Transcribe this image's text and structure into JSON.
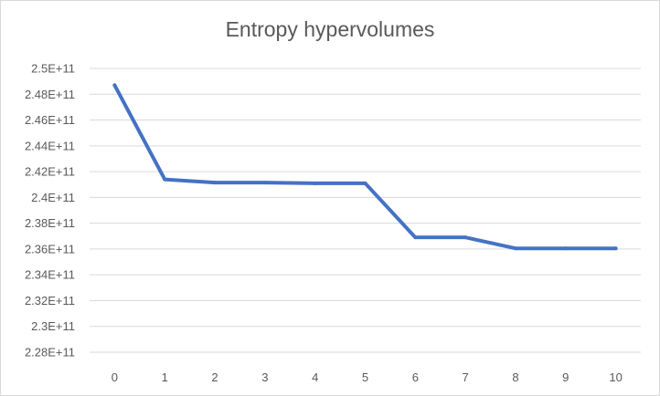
{
  "chart_data": {
    "type": "line",
    "title": "Entropy hypervolumes",
    "xlabel": "",
    "ylabel": "",
    "categories": [
      "0",
      "1",
      "2",
      "3",
      "4",
      "5",
      "6",
      "7",
      "8",
      "9",
      "10"
    ],
    "series": [
      {
        "values": [
          248700000000,
          241400000000,
          241150000000,
          241150000000,
          241100000000,
          241100000000,
          236900000000,
          236900000000,
          236050000000,
          236050000000,
          236050000000
        ],
        "color": "#4472C4"
      }
    ],
    "ylim": [
      228000000000,
      250000000000
    ],
    "y_tick_values": [
      228000000000,
      230000000000,
      232000000000,
      234000000000,
      236000000000,
      238000000000,
      240000000000,
      242000000000,
      244000000000,
      246000000000,
      248000000000,
      250000000000
    ],
    "y_tick_labels": [
      "2.28E+11",
      "2.3E+11",
      "2.32E+11",
      "2.34E+11",
      "2.36E+11",
      "2.38E+11",
      "2.4E+11",
      "2.42E+11",
      "2.44E+11",
      "2.46E+11",
      "2.48E+11",
      "2.5E+11"
    ],
    "gridlines": true,
    "legend": "none",
    "gridline_color": "#d9d9d9"
  }
}
